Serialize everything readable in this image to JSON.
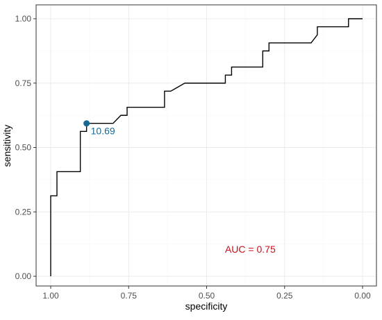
{
  "chart_data": {
    "type": "line",
    "title": "",
    "xlabel": "specificity",
    "ylabel": "sensitivity",
    "xlim": [
      1.0,
      0.0
    ],
    "ylim": [
      0.0,
      1.0
    ],
    "x_reversed": true,
    "grid": true,
    "x_ticks": [
      1.0,
      0.75,
      0.5,
      0.25,
      0.0
    ],
    "x_tick_labels": [
      "1.00",
      "0.75",
      "0.50",
      "0.25",
      "0.00"
    ],
    "y_ticks": [
      0.0,
      0.25,
      0.5,
      0.75,
      1.0
    ],
    "y_tick_labels": [
      "0.00",
      "0.25",
      "0.50",
      "0.75",
      "1.00"
    ],
    "series": [
      {
        "color": "#000000",
        "points": [
          [
            1.0,
            0.0
          ],
          [
            1.0,
            0.3125
          ],
          [
            0.98,
            0.3125
          ],
          [
            0.98,
            0.40625
          ],
          [
            0.905,
            0.40625
          ],
          [
            0.905,
            0.5625
          ],
          [
            0.885,
            0.5625
          ],
          [
            0.885,
            0.59375
          ],
          [
            0.8,
            0.59375
          ],
          [
            0.775,
            0.625
          ],
          [
            0.755,
            0.625
          ],
          [
            0.755,
            0.65625
          ],
          [
            0.635,
            0.65625
          ],
          [
            0.635,
            0.71875
          ],
          [
            0.615,
            0.71875
          ],
          [
            0.57,
            0.75
          ],
          [
            0.44,
            0.75
          ],
          [
            0.44,
            0.78125
          ],
          [
            0.42,
            0.78125
          ],
          [
            0.42,
            0.8125
          ],
          [
            0.32,
            0.8125
          ],
          [
            0.32,
            0.875
          ],
          [
            0.3,
            0.875
          ],
          [
            0.3,
            0.90625
          ],
          [
            0.165,
            0.90625
          ],
          [
            0.145,
            0.9375
          ],
          [
            0.145,
            0.96875
          ],
          [
            0.045,
            0.96875
          ],
          [
            0.045,
            1.0
          ],
          [
            0.0,
            1.0
          ]
        ]
      }
    ],
    "threshold_point": {
      "x": 0.885,
      "y": 0.59375,
      "label": "10.69",
      "color": "#176a93"
    },
    "annotation": {
      "text": "AUC = 0.75",
      "x": 0.36,
      "y": 0.105,
      "color": "#c0101a"
    }
  }
}
